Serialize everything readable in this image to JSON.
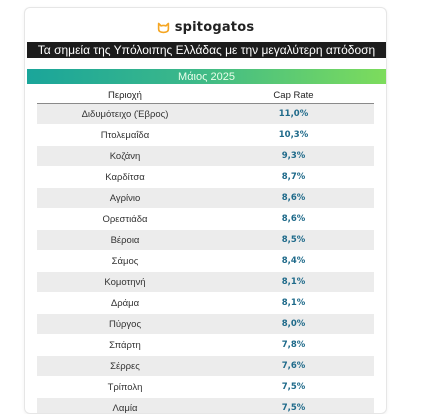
{
  "brand": {
    "name": "spitogatos",
    "icon": "cat-logo-icon",
    "accent": "#f5a623"
  },
  "title": "Τα σημεία της Υπόλοιπης Ελλάδας με την μεγαλύτερη απόδοση",
  "date": "Μάιος 2025",
  "table": {
    "headers": [
      "Περιοχή",
      "Cap Rate"
    ],
    "rows": [
      {
        "area": "Διδυμότειχο (Έβρος)",
        "rate": "11,0%"
      },
      {
        "area": "Πτολεμαΐδα",
        "rate": "10,3%"
      },
      {
        "area": "Κοζάνη",
        "rate": "9,3%"
      },
      {
        "area": "Καρδίτσα",
        "rate": "8,7%"
      },
      {
        "area": "Αγρίνιο",
        "rate": "8,6%"
      },
      {
        "area": "Ορεστιάδα",
        "rate": "8,6%"
      },
      {
        "area": "Βέροια",
        "rate": "8,5%"
      },
      {
        "area": "Σάμος",
        "rate": "8,4%"
      },
      {
        "area": "Κομοτηνή",
        "rate": "8,1%"
      },
      {
        "area": "Δράμα",
        "rate": "8,1%"
      },
      {
        "area": "Πύργος",
        "rate": "8,0%"
      },
      {
        "area": "Σπάρτη",
        "rate": "7,8%"
      },
      {
        "area": "Σέρρες",
        "rate": "7,6%"
      },
      {
        "area": "Τρίπολη",
        "rate": "7,5%"
      },
      {
        "area": "Λαμία",
        "rate": "7,5%"
      }
    ]
  },
  "colors": {
    "title_bg": "#1c1c1c",
    "rate_text": "#1f6a8a",
    "stripe": "#ececec"
  }
}
